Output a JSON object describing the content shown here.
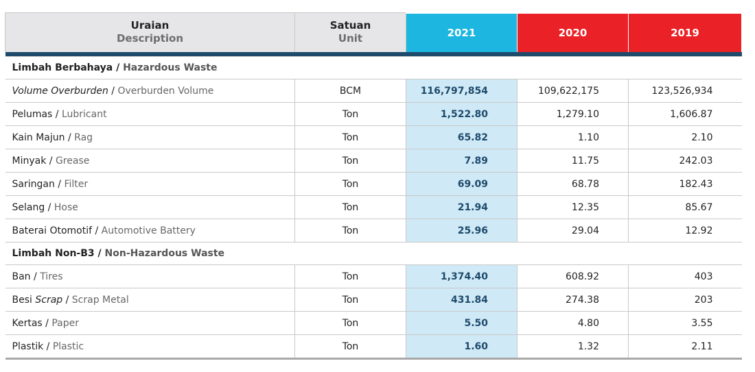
{
  "header": {
    "desc_id": "Uraian",
    "desc_en": "Description",
    "unit_id": "Satuan",
    "unit_en": "Unit",
    "years": [
      "2021",
      "2020",
      "2019"
    ]
  },
  "sections": [
    {
      "title_id": "Limbah Berbahaya",
      "title_en": "Hazardous Waste",
      "rows": [
        {
          "id": "Volume Overburden",
          "en": "Overburden Volume",
          "unit": "BCM",
          "v2021": "116,797,854",
          "v2020": "109,622,175",
          "v2019": "123,526,934"
        },
        {
          "id": "Pelumas",
          "en": "Lubricant",
          "unit": "Ton",
          "v2021": "1,522.80",
          "v2020": "1,279.10",
          "v2019": "1,606.87"
        },
        {
          "id": "Kain Majun",
          "en": "Rag",
          "unit": "Ton",
          "v2021": "65.82",
          "v2020": "1.10",
          "v2019": "2.10"
        },
        {
          "id": "Minyak",
          "en": "Grease",
          "unit": "Ton",
          "v2021": "7.89",
          "v2020": "11.75",
          "v2019": "242.03"
        },
        {
          "id": "Saringan",
          "en": "Filter",
          "unit": "Ton",
          "v2021": "69.09",
          "v2020": "68.78",
          "v2019": "182.43"
        },
        {
          "id": "Selang",
          "en": "Hose",
          "unit": "Ton",
          "v2021": "21.94",
          "v2020": "12.35",
          "v2019": "85.67"
        },
        {
          "id": "Baterai Otomotif",
          "en": "Automotive Battery",
          "unit": "Ton",
          "v2021": "25.96",
          "v2020": "29.04",
          "v2019": "12.92"
        }
      ]
    },
    {
      "title_id": "Limbah Non-B3",
      "title_en": "Non-Hazardous Waste",
      "rows": [
        {
          "id": "Ban",
          "en": "Tires",
          "unit": "Ton",
          "v2021": "1,374.40",
          "v2020": "608.92",
          "v2019": "403"
        },
        {
          "id_pre": "Besi",
          "id_it": "Scrap",
          "en": "Scrap Metal",
          "unit": "Ton",
          "v2021": "431.84",
          "v2020": "274.38",
          "v2019": "203"
        },
        {
          "id": "Kertas",
          "en": "Paper",
          "unit": "Ton",
          "v2021": "5.50",
          "v2020": "4.80",
          "v2019": "3.55"
        },
        {
          "id": "Plastik",
          "en": "Plastic",
          "unit": "Ton",
          "v2021": "1.60",
          "v2020": "1.32",
          "v2019": "2.11"
        }
      ]
    }
  ],
  "colors": {
    "highlight_2021": "#1cb6e0",
    "header_prior_years": "#ea2127",
    "header_bar": "#1e4a6b",
    "cell_highlight": "#cfe9f6"
  }
}
